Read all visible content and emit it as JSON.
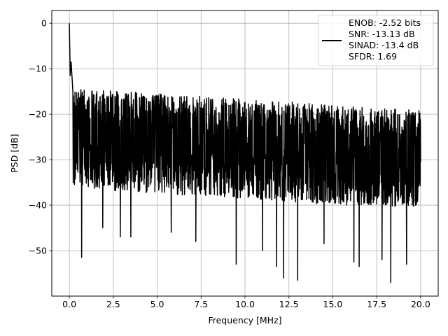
{
  "chart_data": {
    "type": "line",
    "xlabel": "Frequency [MHz]",
    "ylabel": "PSD [dB]",
    "xlim": [
      -1.0,
      21.0
    ],
    "ylim": [
      -60.0,
      2.8
    ],
    "x_ticks": [
      {
        "value": 0.0,
        "label": "0.0"
      },
      {
        "value": 2.5,
        "label": "2.5"
      },
      {
        "value": 5.0,
        "label": "5.0"
      },
      {
        "value": 7.5,
        "label": "7.5"
      },
      {
        "value": 10.0,
        "label": "10.0"
      },
      {
        "value": 12.5,
        "label": "12.5"
      },
      {
        "value": 15.0,
        "label": "15.0"
      },
      {
        "value": 17.5,
        "label": "17.5"
      },
      {
        "value": 20.0,
        "label": "20.0"
      }
    ],
    "y_ticks": [
      {
        "value": 0,
        "label": "0"
      },
      {
        "value": -10,
        "label": "−10"
      },
      {
        "value": -20,
        "label": "−20"
      },
      {
        "value": -30,
        "label": "−30"
      },
      {
        "value": -40,
        "label": "−40"
      },
      {
        "value": -50,
        "label": "−50"
      }
    ],
    "grid": true,
    "legend_position": "top-right",
    "line_color": "#000000",
    "series": [
      {
        "legend_lines": [
          "ENOB: -2.52 bits",
          "SNR: -13.13 dB",
          "SINAD: -13.4 dB",
          "SFDR: 1.69"
        ],
        "x_range": [
          0.0,
          20.0
        ],
        "samples": 2000,
        "peak_points": [
          {
            "x": 0.0,
            "y": 0.0
          },
          {
            "x": 0.05,
            "y": -11.5
          },
          {
            "x": 0.1,
            "y": -8.5
          },
          {
            "x": 0.2,
            "y": -15.0
          }
        ],
        "envelope_upper": [
          {
            "x": 0.0,
            "y": -14.0
          },
          {
            "x": 1.0,
            "y": -14.5
          },
          {
            "x": 5.0,
            "y": -15.5
          },
          {
            "x": 10.0,
            "y": -16.5
          },
          {
            "x": 15.0,
            "y": -18.0
          },
          {
            "x": 20.0,
            "y": -19.0
          }
        ],
        "envelope_lower": [
          {
            "x": 0.0,
            "y": -36.0
          },
          {
            "x": 5.0,
            "y": -37.5
          },
          {
            "x": 10.0,
            "y": -38.5
          },
          {
            "x": 15.0,
            "y": -40.0
          },
          {
            "x": 20.0,
            "y": -40.5
          }
        ],
        "notable_dips": [
          {
            "x": 0.7,
            "y": -51.5
          },
          {
            "x": 1.9,
            "y": -45.0
          },
          {
            "x": 2.9,
            "y": -47.0
          },
          {
            "x": 3.5,
            "y": -47.0
          },
          {
            "x": 5.8,
            "y": -46.0
          },
          {
            "x": 7.2,
            "y": -48.0
          },
          {
            "x": 9.5,
            "y": -53.0
          },
          {
            "x": 11.0,
            "y": -50.0
          },
          {
            "x": 11.8,
            "y": -53.5
          },
          {
            "x": 12.2,
            "y": -56.0
          },
          {
            "x": 13.0,
            "y": -56.5
          },
          {
            "x": 14.5,
            "y": -48.5
          },
          {
            "x": 16.2,
            "y": -52.5
          },
          {
            "x": 16.5,
            "y": -53.5
          },
          {
            "x": 17.8,
            "y": -52.0
          },
          {
            "x": 18.3,
            "y": -57.0
          },
          {
            "x": 19.2,
            "y": -53.0
          }
        ]
      }
    ]
  }
}
